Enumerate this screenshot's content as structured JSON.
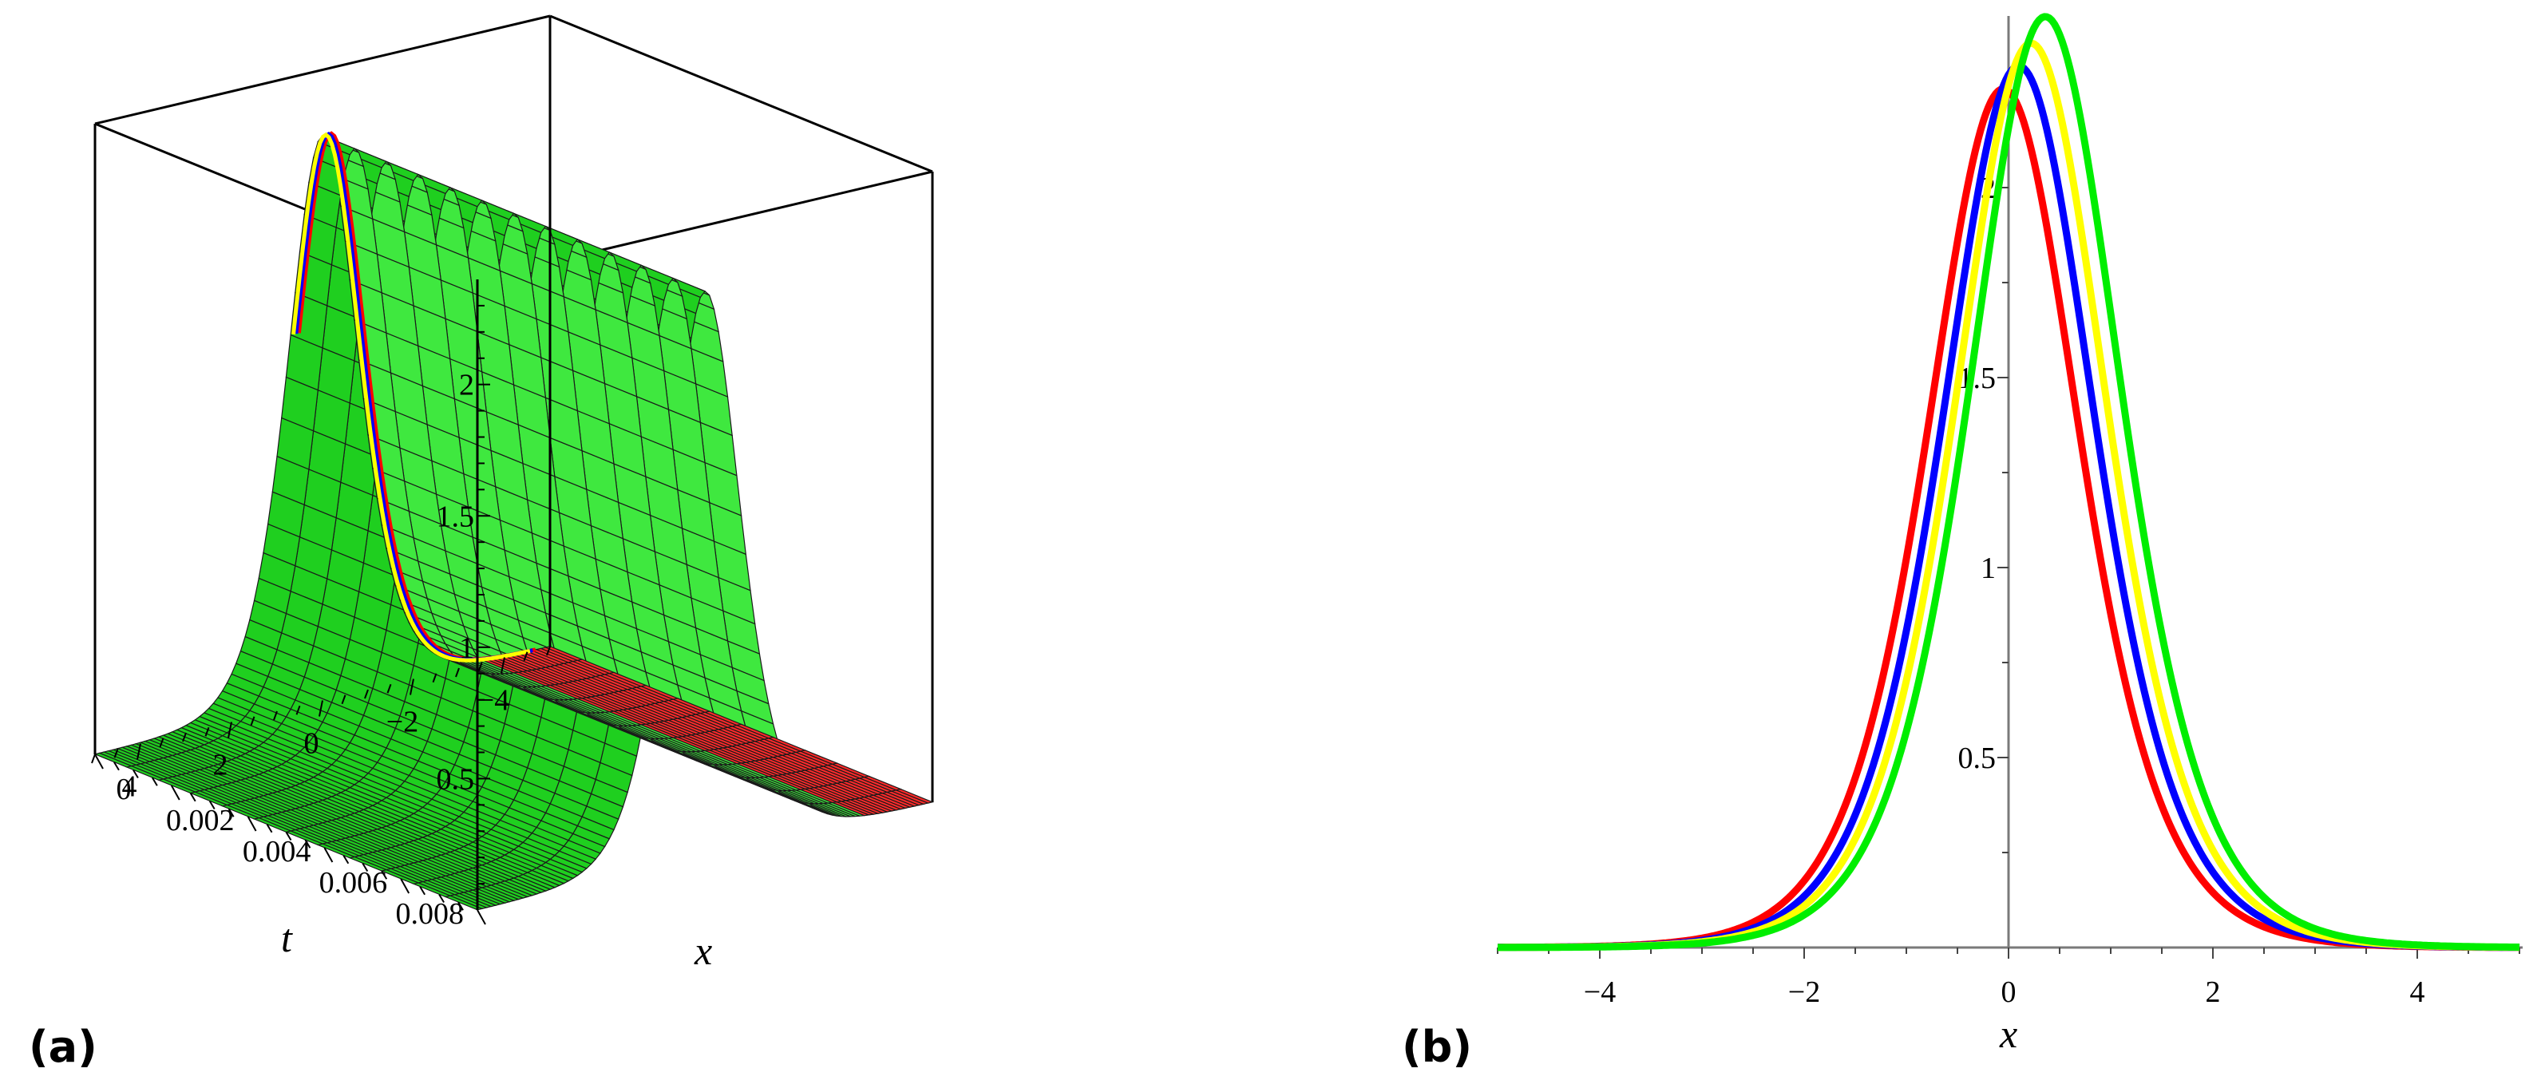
{
  "panels": {
    "a": {
      "label": "(a)"
    },
    "b": {
      "label": "(b)"
    }
  },
  "chart_data": [
    {
      "type": "surface3d",
      "panel": "(a)",
      "xlabel": "x",
      "tlabel": "t",
      "zlabel": "",
      "x_ticks": [
        "4",
        "2",
        "0",
        "−2",
        "−4"
      ],
      "x_tick_values": [
        4,
        2,
        0,
        -2,
        -4
      ],
      "t_ticks": [
        "0",
        "0.002",
        "0.004",
        "0.006",
        "0.008"
      ],
      "t_tick_values": [
        0,
        0.002,
        0.004,
        0.006,
        0.008
      ],
      "z_ticks": [
        "0.5",
        "1",
        "1.5",
        "2"
      ],
      "z_tick_values": [
        0.5,
        1,
        1.5,
        2
      ],
      "x_range": [
        -5,
        5
      ],
      "t_range": [
        0,
        0.01
      ],
      "z_range": [
        0,
        2.4
      ],
      "surface_peak": 2.15,
      "surface_width": 1.05,
      "colors": {
        "surface": "#22dd22",
        "mesh": "#1a1a1a",
        "edge_red": "#ff0000",
        "edge_blue": "#0000ff",
        "edge_yellow": "#ffff00"
      }
    },
    {
      "type": "line",
      "panel": "(b)",
      "xlabel": "x",
      "ylabel": "",
      "xlim": [
        -5,
        5
      ],
      "ylim": [
        0,
        2.45
      ],
      "x_ticks": [
        "−4",
        "−2",
        "0",
        "2",
        "4"
      ],
      "x_tick_values": [
        -4,
        -2,
        0,
        2,
        4
      ],
      "y_ticks": [
        "0.5",
        "1",
        "1.5",
        "2"
      ],
      "y_tick_values": [
        0.5,
        1,
        1.5,
        2
      ],
      "grid": false,
      "series": [
        {
          "color": "#ff0000",
          "peak": 2.26,
          "center": -0.05,
          "width": 1.0
        },
        {
          "color": "#0000ff",
          "peak": 2.32,
          "center": 0.1,
          "width": 1.0
        },
        {
          "color": "#ffff00",
          "peak": 2.38,
          "center": 0.22,
          "width": 1.0
        },
        {
          "color": "#00ee00",
          "peak": 2.45,
          "center": 0.36,
          "width": 1.0
        }
      ]
    }
  ]
}
